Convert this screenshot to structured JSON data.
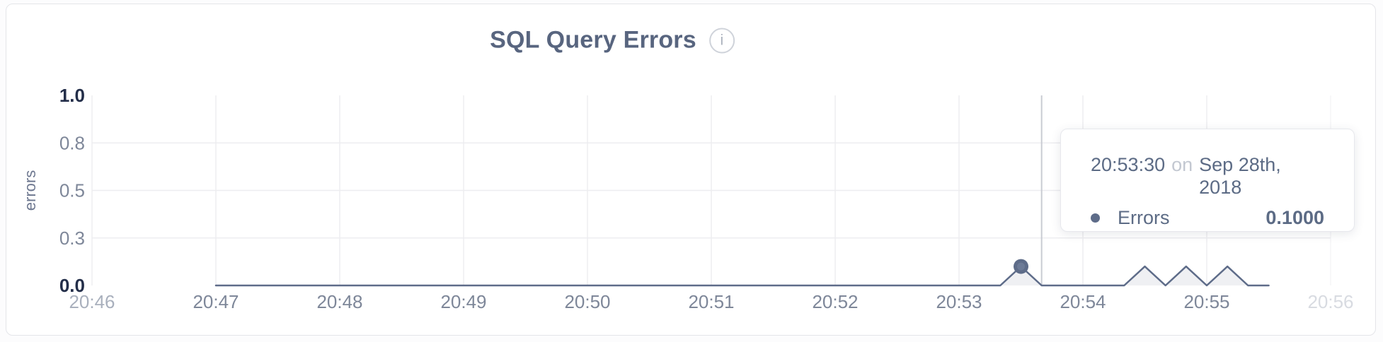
{
  "header": {
    "title": "SQL Query Errors",
    "info_icon": "i"
  },
  "colors": {
    "accent": "#5e6c89",
    "series_fill": "rgba(94,108,137,0.10)",
    "marker_inner": "#69779441",
    "grid": "#ededf0",
    "crosshair": "#c9ccd3",
    "title": "#58657f",
    "tick_strong": "#232e49",
    "tick_normal": "#7e8799"
  },
  "chart_data": {
    "type": "area",
    "title": "SQL Query Errors",
    "xlabel": "",
    "ylabel": "errors",
    "ylim": [
      0,
      1
    ],
    "x_range": [
      "20:46:00",
      "20:56:00"
    ],
    "grid": true,
    "legend_position": "none",
    "yticks": [
      {
        "value": 0,
        "label": "0.0",
        "strong": true
      },
      {
        "value": 0.25,
        "label": "0.3",
        "strong": false
      },
      {
        "value": 0.5,
        "label": "0.5",
        "strong": false
      },
      {
        "value": 0.75,
        "label": "0.8",
        "strong": false
      },
      {
        "value": 1,
        "label": "1.0",
        "strong": true
      }
    ],
    "xticks": [
      {
        "time": "20:46:00",
        "label": "20:46",
        "faded": "left"
      },
      {
        "time": "20:47:00",
        "label": "20:47",
        "faded": ""
      },
      {
        "time": "20:48:00",
        "label": "20:48",
        "faded": ""
      },
      {
        "time": "20:49:00",
        "label": "20:49",
        "faded": ""
      },
      {
        "time": "20:50:00",
        "label": "20:50",
        "faded": ""
      },
      {
        "time": "20:51:00",
        "label": "20:51",
        "faded": ""
      },
      {
        "time": "20:52:00",
        "label": "20:52",
        "faded": ""
      },
      {
        "time": "20:53:00",
        "label": "20:53",
        "faded": ""
      },
      {
        "time": "20:54:00",
        "label": "20:54",
        "faded": ""
      },
      {
        "time": "20:55:00",
        "label": "20:55",
        "faded": ""
      },
      {
        "time": "20:56:00",
        "label": "20:56",
        "faded": "right"
      }
    ],
    "series": [
      {
        "name": "Errors",
        "color": "#5e6c89",
        "sample_interval_seconds": 10,
        "points": [
          [
            "20:47:00",
            0
          ],
          [
            "20:47:10",
            0
          ],
          [
            "20:47:20",
            0
          ],
          [
            "20:47:30",
            0
          ],
          [
            "20:47:40",
            0
          ],
          [
            "20:47:50",
            0
          ],
          [
            "20:48:00",
            0
          ],
          [
            "20:48:10",
            0
          ],
          [
            "20:48:20",
            0
          ],
          [
            "20:48:30",
            0
          ],
          [
            "20:48:40",
            0
          ],
          [
            "20:48:50",
            0
          ],
          [
            "20:49:00",
            0
          ],
          [
            "20:49:10",
            0
          ],
          [
            "20:49:20",
            0
          ],
          [
            "20:49:30",
            0
          ],
          [
            "20:49:40",
            0
          ],
          [
            "20:49:50",
            0
          ],
          [
            "20:50:00",
            0
          ],
          [
            "20:50:10",
            0
          ],
          [
            "20:50:20",
            0
          ],
          [
            "20:50:30",
            0
          ],
          [
            "20:50:40",
            0
          ],
          [
            "20:50:50",
            0
          ],
          [
            "20:51:00",
            0
          ],
          [
            "20:51:10",
            0
          ],
          [
            "20:51:20",
            0
          ],
          [
            "20:51:30",
            0
          ],
          [
            "20:51:40",
            0
          ],
          [
            "20:51:50",
            0
          ],
          [
            "20:52:00",
            0
          ],
          [
            "20:52:10",
            0
          ],
          [
            "20:52:20",
            0
          ],
          [
            "20:52:30",
            0
          ],
          [
            "20:52:40",
            0
          ],
          [
            "20:52:50",
            0
          ],
          [
            "20:53:00",
            0
          ],
          [
            "20:53:10",
            0
          ],
          [
            "20:53:20",
            0
          ],
          [
            "20:53:30",
            0.1
          ],
          [
            "20:53:40",
            0
          ],
          [
            "20:53:50",
            0
          ],
          [
            "20:54:00",
            0
          ],
          [
            "20:54:10",
            0
          ],
          [
            "20:54:20",
            0
          ],
          [
            "20:54:30",
            0.1
          ],
          [
            "20:54:40",
            0
          ],
          [
            "20:54:50",
            0.1
          ],
          [
            "20:55:00",
            0
          ],
          [
            "20:55:10",
            0.1
          ],
          [
            "20:55:20",
            0
          ],
          [
            "20:55:30",
            0
          ]
        ]
      }
    ],
    "hover": {
      "time": "20:53:30",
      "joiner": "on",
      "date": "Sep 28th, 2018",
      "series": "Errors",
      "value": 0.1,
      "value_label": "0.1000"
    }
  }
}
